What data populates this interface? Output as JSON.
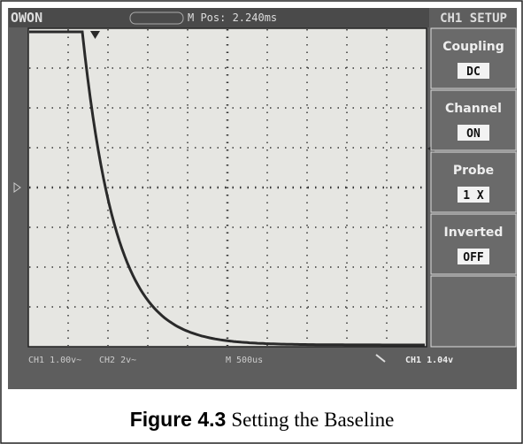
{
  "header": {
    "brand": "OWON",
    "position": "M Pos: 2.240ms",
    "menu_title": "CH1 SETUP"
  },
  "menu": [
    {
      "label": "Coupling",
      "value": "DC"
    },
    {
      "label": "Channel",
      "value": "ON"
    },
    {
      "label": "Probe",
      "value": "1 X"
    },
    {
      "label": "Inverted",
      "value": "OFF"
    }
  ],
  "footer": {
    "ch1": "CH1 1.00v~",
    "ch2": "CH2 2v~",
    "timebase": "M 500us",
    "trigger": "CH1 1.04v"
  },
  "caption": {
    "number": "Figure 4.3",
    "text": "Setting the Baseline"
  }
}
